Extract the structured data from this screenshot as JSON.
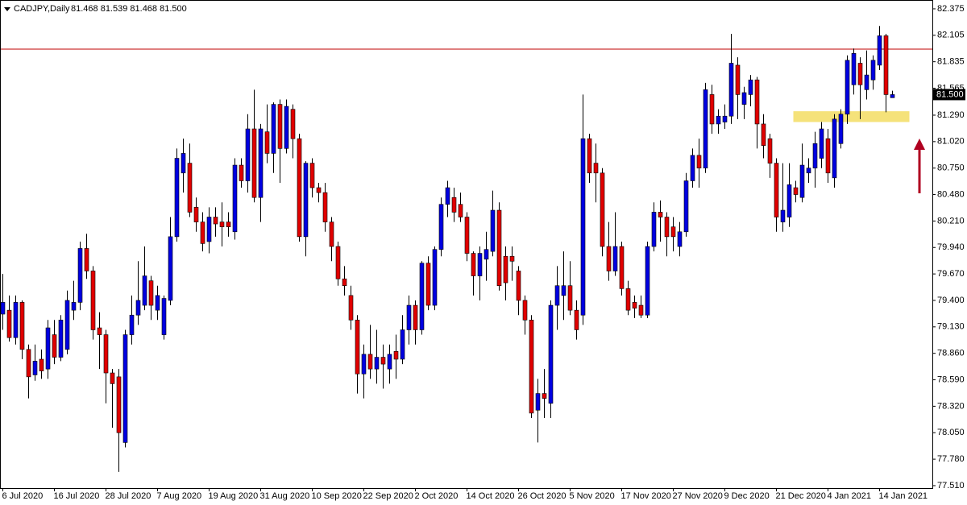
{
  "chart_data": {
    "type": "candlestick",
    "title": "CADJPY,Daily",
    "ohlc_text": "81.468 81.539 81.468 81.500",
    "categories": [
      "6 Jul 2020",
      null,
      null,
      null,
      null,
      null,
      null,
      null,
      "16 Jul 2020",
      null,
      null,
      null,
      null,
      null,
      null,
      null,
      "28 Jul 2020",
      null,
      null,
      null,
      null,
      null,
      null,
      null,
      "7 Aug 2020",
      null,
      null,
      null,
      null,
      null,
      null,
      null,
      "19 Aug 2020",
      null,
      null,
      null,
      null,
      null,
      null,
      null,
      "31 Aug 2020",
      null,
      null,
      null,
      null,
      null,
      null,
      null,
      "10 Sep 2020",
      null,
      null,
      null,
      null,
      null,
      null,
      null,
      "22 Sep 2020",
      null,
      null,
      null,
      null,
      null,
      null,
      null,
      "2 Oct 2020",
      null,
      null,
      null,
      null,
      null,
      null,
      null,
      "14 Oct 2020",
      null,
      null,
      null,
      null,
      null,
      null,
      null,
      "26 Oct 2020",
      null,
      null,
      null,
      null,
      null,
      null,
      null,
      "5 Nov 2020",
      null,
      null,
      null,
      null,
      null,
      null,
      null,
      "17 Nov 2020",
      null,
      null,
      null,
      null,
      null,
      null,
      null,
      "27 Nov 2020",
      null,
      null,
      null,
      null,
      null,
      null,
      null,
      "9 Dec 2020",
      null,
      null,
      null,
      null,
      null,
      null,
      null,
      "21 Dec 2020",
      null,
      null,
      null,
      null,
      null,
      null,
      null,
      "4 Jan 2021",
      null,
      null,
      null,
      null,
      null,
      null,
      null,
      "14 Jan 2021",
      null,
      null
    ],
    "open": [
      79.26,
      79.3,
      79.02,
      79.38,
      78.9,
      78.64,
      78.8,
      78.7,
      79.05,
      78.82,
      78.9,
      79.3,
      79.38,
      79.93,
      79.7,
      79.12,
      79.05,
      78.66,
      78.62,
      77.95,
      79.05,
      79.25,
      79.35,
      79.6,
      79.3,
      79.05,
      79.4,
      80.05,
      80.7,
      80.8,
      80.35,
      80.2,
      80.0,
      80.25,
      80.2,
      80.2,
      80.1,
      80.78,
      80.62,
      81.15,
      80.45,
      81.12,
      80.9,
      81.4,
      80.95,
      81.35,
      81.05,
      80.05,
      80.8,
      80.55,
      80.5,
      80.2,
      79.95,
      79.62,
      79.45,
      79.2,
      78.65,
      78.85,
      78.7,
      78.82,
      78.7,
      78.88,
      78.8,
      79.1,
      79.35,
      79.1,
      79.78,
      79.35,
      79.92,
      80.38,
      80.45,
      80.38,
      80.25,
      79.88,
      79.65,
      79.82,
      79.9,
      80.32,
      79.85,
      79.85,
      79.7,
      79.4,
      79.2,
      78.28,
      78.45,
      78.35,
      79.35,
      79.45,
      79.55,
      79.3,
      79.25,
      81.05,
      80.8,
      80.7,
      79.95,
      79.7,
      79.95,
      79.52,
      79.38,
      79.35,
      79.25,
      79.95,
      80.3,
      80.25,
      80.15,
      79.95,
      80.1,
      80.62,
      80.88,
      80.75,
      81.5,
      81.2,
      81.22,
      81.28,
      81.8,
      81.4,
      81.5,
      81.65,
      81.2,
      81.05,
      80.8,
      80.2,
      80.25,
      80.55,
      80.45,
      80.7,
      80.75,
      80.85,
      81.05,
      80.65,
      81.0,
      81.3,
      81.6,
      81.82,
      81.55,
      81.65,
      81.8,
      82.1,
      81.468
    ],
    "high": [
      79.67,
      79.45,
      79.45,
      79.4,
      78.95,
      78.95,
      78.9,
      79.2,
      79.2,
      79.25,
      79.5,
      79.6,
      80.0,
      80.08,
      79.75,
      79.28,
      79.1,
      78.7,
      78.7,
      79.1,
      79.45,
      79.8,
      79.95,
      79.65,
      79.55,
      79.45,
      80.25,
      80.95,
      81.05,
      81.0,
      80.45,
      80.3,
      80.35,
      80.35,
      80.4,
      80.3,
      80.85,
      80.85,
      81.3,
      81.55,
      81.2,
      81.4,
      81.42,
      81.45,
      81.45,
      81.4,
      81.1,
      80.82,
      80.85,
      80.6,
      80.6,
      80.25,
      80.0,
      79.75,
      79.55,
      79.25,
      78.95,
      79.15,
      79.1,
      78.95,
      78.95,
      79.05,
      79.25,
      79.45,
      79.4,
      79.8,
      79.85,
      79.95,
      80.45,
      80.62,
      80.55,
      80.5,
      80.3,
      79.9,
      79.95,
      80.1,
      80.52,
      80.4,
      79.95,
      79.95,
      79.75,
      79.45,
      79.25,
      78.6,
      78.7,
      79.4,
      79.75,
      79.9,
      79.8,
      79.4,
      81.5,
      81.1,
      81.0,
      80.75,
      80.2,
      80.3,
      80.0,
      79.6,
      79.45,
      79.45,
      80.0,
      80.4,
      80.42,
      80.3,
      80.25,
      80.2,
      80.7,
      80.95,
      81.05,
      81.62,
      81.6,
      81.35,
      81.4,
      82.12,
      81.88,
      81.58,
      81.7,
      81.68,
      81.3,
      81.1,
      80.85,
      80.8,
      80.8,
      80.62,
      81.0,
      80.85,
      81.12,
      81.22,
      81.15,
      81.3,
      81.35,
      81.9,
      81.97,
      81.88,
      81.95,
      81.9,
      82.2,
      82.12,
      81.539
    ],
    "low": [
      79.1,
      78.98,
      78.95,
      78.8,
      78.4,
      78.58,
      78.6,
      78.6,
      78.75,
      78.78,
      78.85,
      79.2,
      79.3,
      79.62,
      79.0,
      78.7,
      78.35,
      78.1,
      77.65,
      77.9,
      78.95,
      79.15,
      79.3,
      79.2,
      79.2,
      79.0,
      79.35,
      80.0,
      80.5,
      80.25,
      80.1,
      79.9,
      79.88,
      80.05,
      79.95,
      80.05,
      80.02,
      80.55,
      80.5,
      80.4,
      80.2,
      80.8,
      80.7,
      80.6,
      80.9,
      80.85,
      80.0,
      79.85,
      80.45,
      80.4,
      80.1,
      79.8,
      79.55,
      79.45,
      79.1,
      78.45,
      78.4,
      78.6,
      78.55,
      78.5,
      78.55,
      78.6,
      78.75,
      78.95,
      78.95,
      79.05,
      79.3,
      79.3,
      79.85,
      80.25,
      80.2,
      80.2,
      79.8,
      79.45,
      79.4,
      79.6,
      79.85,
      79.5,
      79.4,
      79.6,
      79.25,
      79.05,
      78.2,
      77.95,
      78.2,
      78.2,
      79.1,
      79.2,
      79.25,
      79.0,
      79.15,
      80.6,
      80.4,
      79.85,
      79.6,
      79.65,
      79.45,
      79.25,
      79.22,
      79.22,
      79.22,
      79.9,
      80.0,
      79.85,
      79.9,
      79.85,
      80.05,
      80.55,
      80.55,
      80.7,
      81.1,
      81.1,
      81.15,
      81.2,
      81.25,
      81.25,
      81.38,
      80.95,
      80.85,
      80.65,
      80.1,
      80.1,
      80.15,
      80.4,
      80.4,
      80.6,
      80.55,
      80.75,
      80.6,
      80.55,
      80.95,
      81.2,
      81.5,
      81.25,
      81.45,
      81.55,
      81.75,
      81.32,
      81.468
    ],
    "close": [
      79.38,
      79.02,
      79.38,
      78.9,
      78.62,
      78.78,
      78.68,
      79.12,
      78.82,
      79.2,
      79.4,
      79.38,
      79.93,
      79.7,
      79.1,
      79.05,
      78.66,
      78.55,
      78.05,
      79.05,
      79.25,
      79.4,
      79.65,
      79.35,
      79.45,
      79.42,
      80.05,
      80.85,
      80.9,
      80.3,
      80.2,
      79.98,
      80.25,
      80.18,
      80.15,
      80.15,
      80.78,
      80.62,
      81.15,
      80.45,
      81.15,
      80.9,
      81.4,
      80.95,
      81.38,
      81.05,
      80.05,
      80.8,
      80.55,
      80.5,
      80.2,
      79.95,
      79.62,
      79.55,
      79.2,
      78.65,
      78.85,
      78.7,
      78.82,
      78.75,
      78.85,
      78.8,
      79.1,
      79.35,
      79.1,
      79.78,
      79.35,
      79.92,
      80.38,
      80.55,
      80.3,
      80.25,
      79.88,
      79.65,
      79.88,
      79.92,
      80.32,
      79.55,
      79.58,
      79.8,
      79.4,
      79.2,
      78.25,
      78.45,
      78.4,
      79.35,
      79.55,
      79.55,
      79.3,
      79.1,
      81.05,
      80.7,
      80.7,
      79.95,
      79.7,
      79.95,
      79.52,
      79.3,
      79.32,
      79.25,
      79.95,
      80.3,
      80.25,
      80.05,
      80.05,
      80.1,
      80.62,
      80.88,
      80.75,
      81.55,
      81.2,
      81.28,
      81.28,
      81.82,
      81.5,
      81.52,
      81.65,
      81.2,
      80.98,
      80.8,
      80.25,
      80.32,
      80.58,
      80.48,
      80.78,
      80.75,
      81.0,
      81.15,
      80.7,
      81.25,
      81.3,
      81.85,
      81.92,
      81.6,
      81.7,
      81.85,
      82.1,
      81.5,
      81.5
    ],
    "up_color": "#0000e0",
    "down_color": "#e00000",
    "ylim": [
      77.485,
      82.465
    ],
    "yticks": [
      82.375,
      82.105,
      81.835,
      81.565,
      {
        "value": 81.29,
        "label": "81.290"
      },
      {
        "value": 81.02,
        "label": "81.020"
      },
      {
        "value": 80.75,
        "label": "80.750"
      },
      {
        "value": 80.48,
        "label": "80.480"
      },
      {
        "value": 80.21,
        "label": "80.210"
      },
      {
        "value": 79.94,
        "label": "79.940"
      },
      {
        "value": 79.67,
        "label": "79.670"
      },
      {
        "value": 79.4,
        "label": "79.400"
      },
      {
        "value": 79.13,
        "label": "79.130"
      },
      {
        "value": 78.86,
        "label": "78.860"
      },
      {
        "value": 78.59,
        "label": "78.590"
      },
      {
        "value": 78.32,
        "label": "78.320"
      },
      {
        "value": 78.05,
        "label": "78.050"
      },
      {
        "value": 77.78,
        "label": "77.780"
      },
      {
        "value": 77.51,
        "label": "77.510"
      }
    ],
    "last_price": {
      "value": 81.5,
      "label": "81.500"
    },
    "hline": {
      "value": 81.964,
      "color": "#c00000"
    },
    "zone": {
      "low": 81.22,
      "high": 81.33,
      "start": 123,
      "end": 141,
      "color": "#f5e27a"
    },
    "grid": false
  }
}
